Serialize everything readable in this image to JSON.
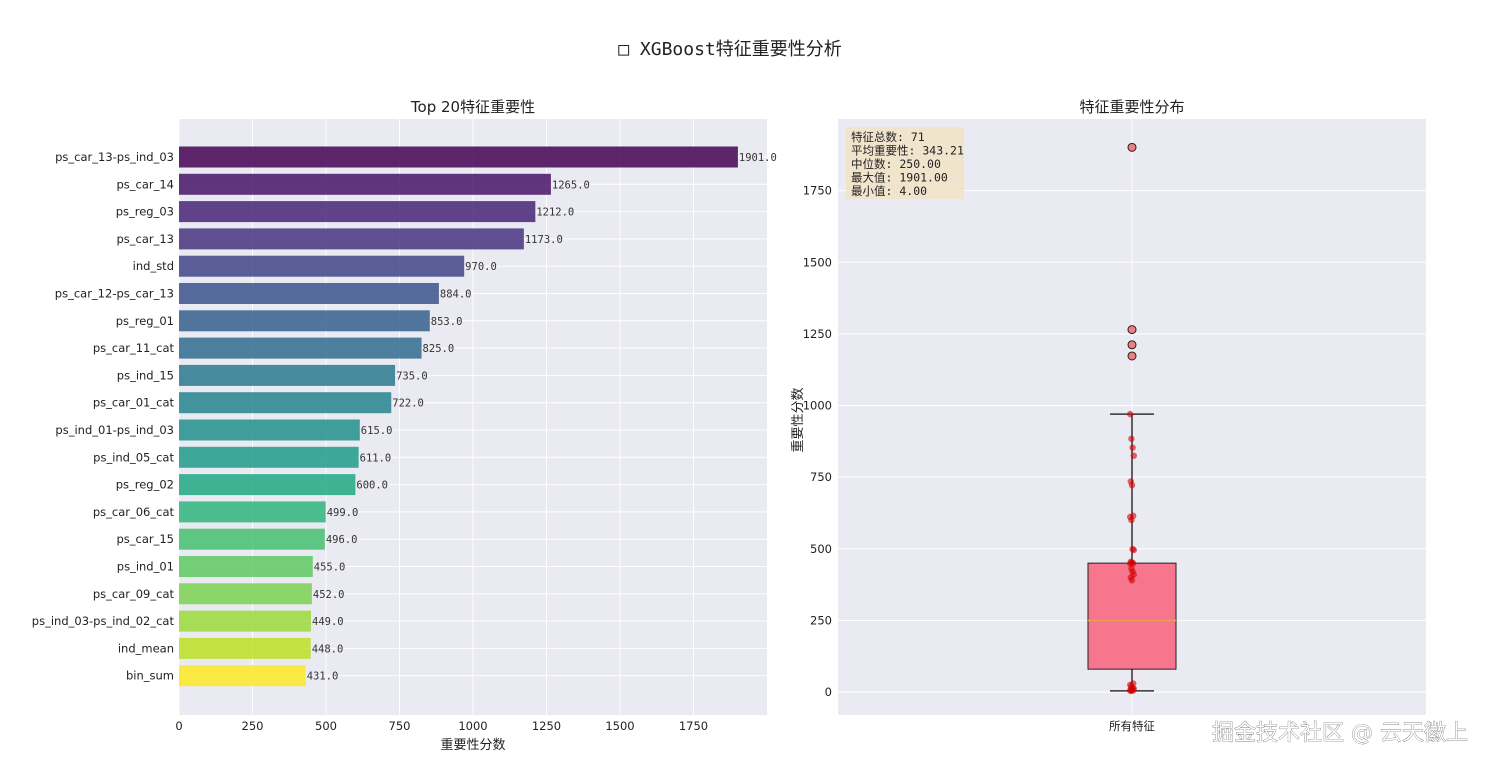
{
  "figure": {
    "title": "□ XGBoost特征重要性分析",
    "watermark": "掘金技术社区 @ 云天徽上"
  },
  "chart_data": [
    {
      "type": "bar",
      "orientation": "horizontal",
      "title": "Top 20特征重要性",
      "xlabel": "重要性分数",
      "ylabel": "",
      "xlim": [
        0,
        2000
      ],
      "xticks": [
        0,
        250,
        500,
        750,
        1000,
        1250,
        1500,
        1750
      ],
      "grid": true,
      "colormap": "viridis",
      "categories": [
        "ps_car_13-ps_ind_03",
        "ps_car_14",
        "ps_reg_03",
        "ps_car_13",
        "ind_std",
        "ps_car_12-ps_car_13",
        "ps_reg_01",
        "ps_car_11_cat",
        "ps_ind_15",
        "ps_car_01_cat",
        "ps_ind_01-ps_ind_03",
        "ps_ind_05_cat",
        "ps_reg_02",
        "ps_car_06_cat",
        "ps_car_15",
        "ps_ind_01",
        "ps_car_09_cat",
        "ps_ind_03-ps_ind_02_cat",
        "ind_mean",
        "bin_sum"
      ],
      "values": [
        1901.0,
        1265.0,
        1212.0,
        1173.0,
        970.0,
        884.0,
        853.0,
        825.0,
        735.0,
        722.0,
        615.0,
        611.0,
        600.0,
        499.0,
        496.0,
        455.0,
        452.0,
        449.0,
        448.0,
        431.0
      ],
      "value_labels": [
        "1901.0",
        "1265.0",
        "1212.0",
        "1173.0",
        "970.0",
        "884.0",
        "853.0",
        "825.0",
        "735.0",
        "722.0",
        "615.0",
        "611.0",
        "600.0",
        "499.0",
        "496.0",
        "455.0",
        "452.0",
        "449.0",
        "448.0",
        "431.0"
      ],
      "colors": [
        "#440154",
        "#481467",
        "#482576",
        "#463480",
        "#414487",
        "#3b528b",
        "#355f8d",
        "#2f6c8e",
        "#2a788e",
        "#25848e",
        "#21918c",
        "#1e9c89",
        "#22a884",
        "#2fb47c",
        "#44bf70",
        "#5ec962",
        "#7ad151",
        "#9bd93c",
        "#bddf26",
        "#fde725"
      ]
    },
    {
      "type": "box",
      "title": "特征重要性分布",
      "xlabel": "",
      "ylabel": "重要性分数",
      "category": "所有特征",
      "ylim": [
        -80,
        2000
      ],
      "yticks": [
        0,
        250,
        500,
        750,
        1000,
        1250,
        1500,
        1750
      ],
      "grid": true,
      "box": {
        "q1": 80,
        "median": 250,
        "q3": 450,
        "whisker_low": 4,
        "whisker_high": 970,
        "color": "#f7768e"
      },
      "outliers": [
        1901,
        1265,
        1212,
        1173
      ],
      "points": [
        970,
        884,
        853,
        825,
        735,
        722,
        615,
        611,
        600,
        499,
        496,
        455,
        452,
        449,
        448,
        431,
        420,
        410,
        400,
        390,
        30,
        25,
        20,
        15,
        12,
        10,
        8,
        6,
        5,
        4
      ],
      "stats_box": {
        "lines": [
          "特征总数: 71",
          "平均重要性: 343.21",
          "中位数: 250.00",
          "最大值: 1901.00",
          "最小值: 4.00"
        ],
        "position": "top-left"
      }
    }
  ]
}
